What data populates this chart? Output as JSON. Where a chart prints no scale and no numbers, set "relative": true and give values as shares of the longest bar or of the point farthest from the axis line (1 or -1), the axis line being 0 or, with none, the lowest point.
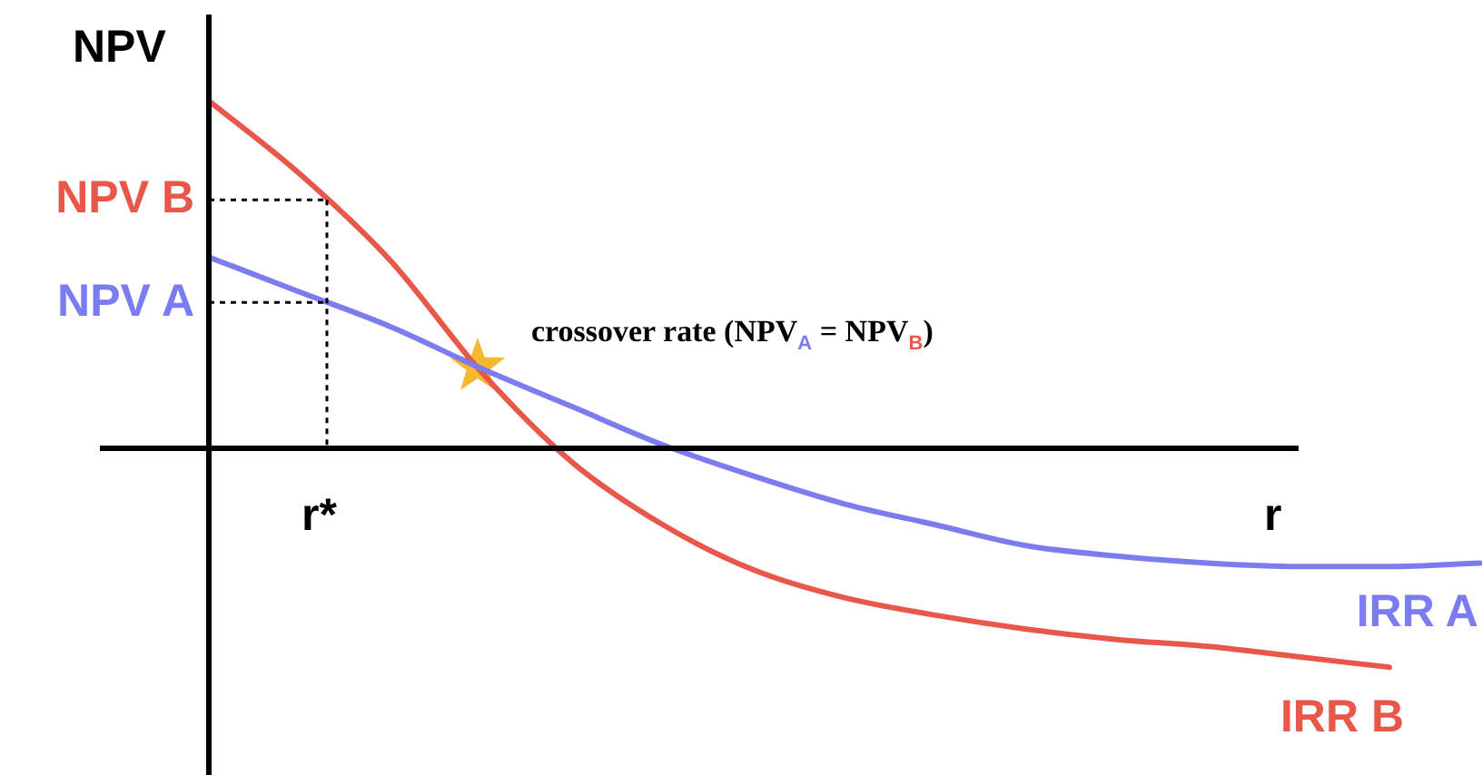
{
  "chart_data": {
    "type": "line",
    "relative": true,
    "ylabel": "NPV",
    "xlabel": "r",
    "categories": [
      null,
      null,
      null,
      null,
      null,
      null,
      null,
      null,
      null,
      null,
      null,
      null,
      null,
      null,
      null
    ],
    "series": [
      {
        "name": "IRR A",
        "color": "#7b7cf0",
        "values": [
          0.55,
          0.45,
          0.35,
          0.23,
          0.12,
          0.01,
          -0.08,
          -0.16,
          -0.22,
          -0.28,
          -0.31,
          -0.33,
          -0.34,
          -0.34,
          -0.33
        ]
      },
      {
        "name": "IRR B",
        "color": "#e8574a",
        "values": [
          1,
          0.79,
          0.54,
          0.22,
          -0.04,
          -0.22,
          -0.35,
          -0.43,
          -0.48,
          -0.52,
          -0.55,
          -0.57,
          -0.6,
          -0.63,
          null
        ]
      }
    ],
    "annotations": [
      "NPV B",
      "NPV A",
      "r*",
      "crossover rate (NPV$_{A}$ = NPV$_{B}$)"
    ],
    "marker": "none",
    "line_style": "solid",
    "legend": false
  }
}
